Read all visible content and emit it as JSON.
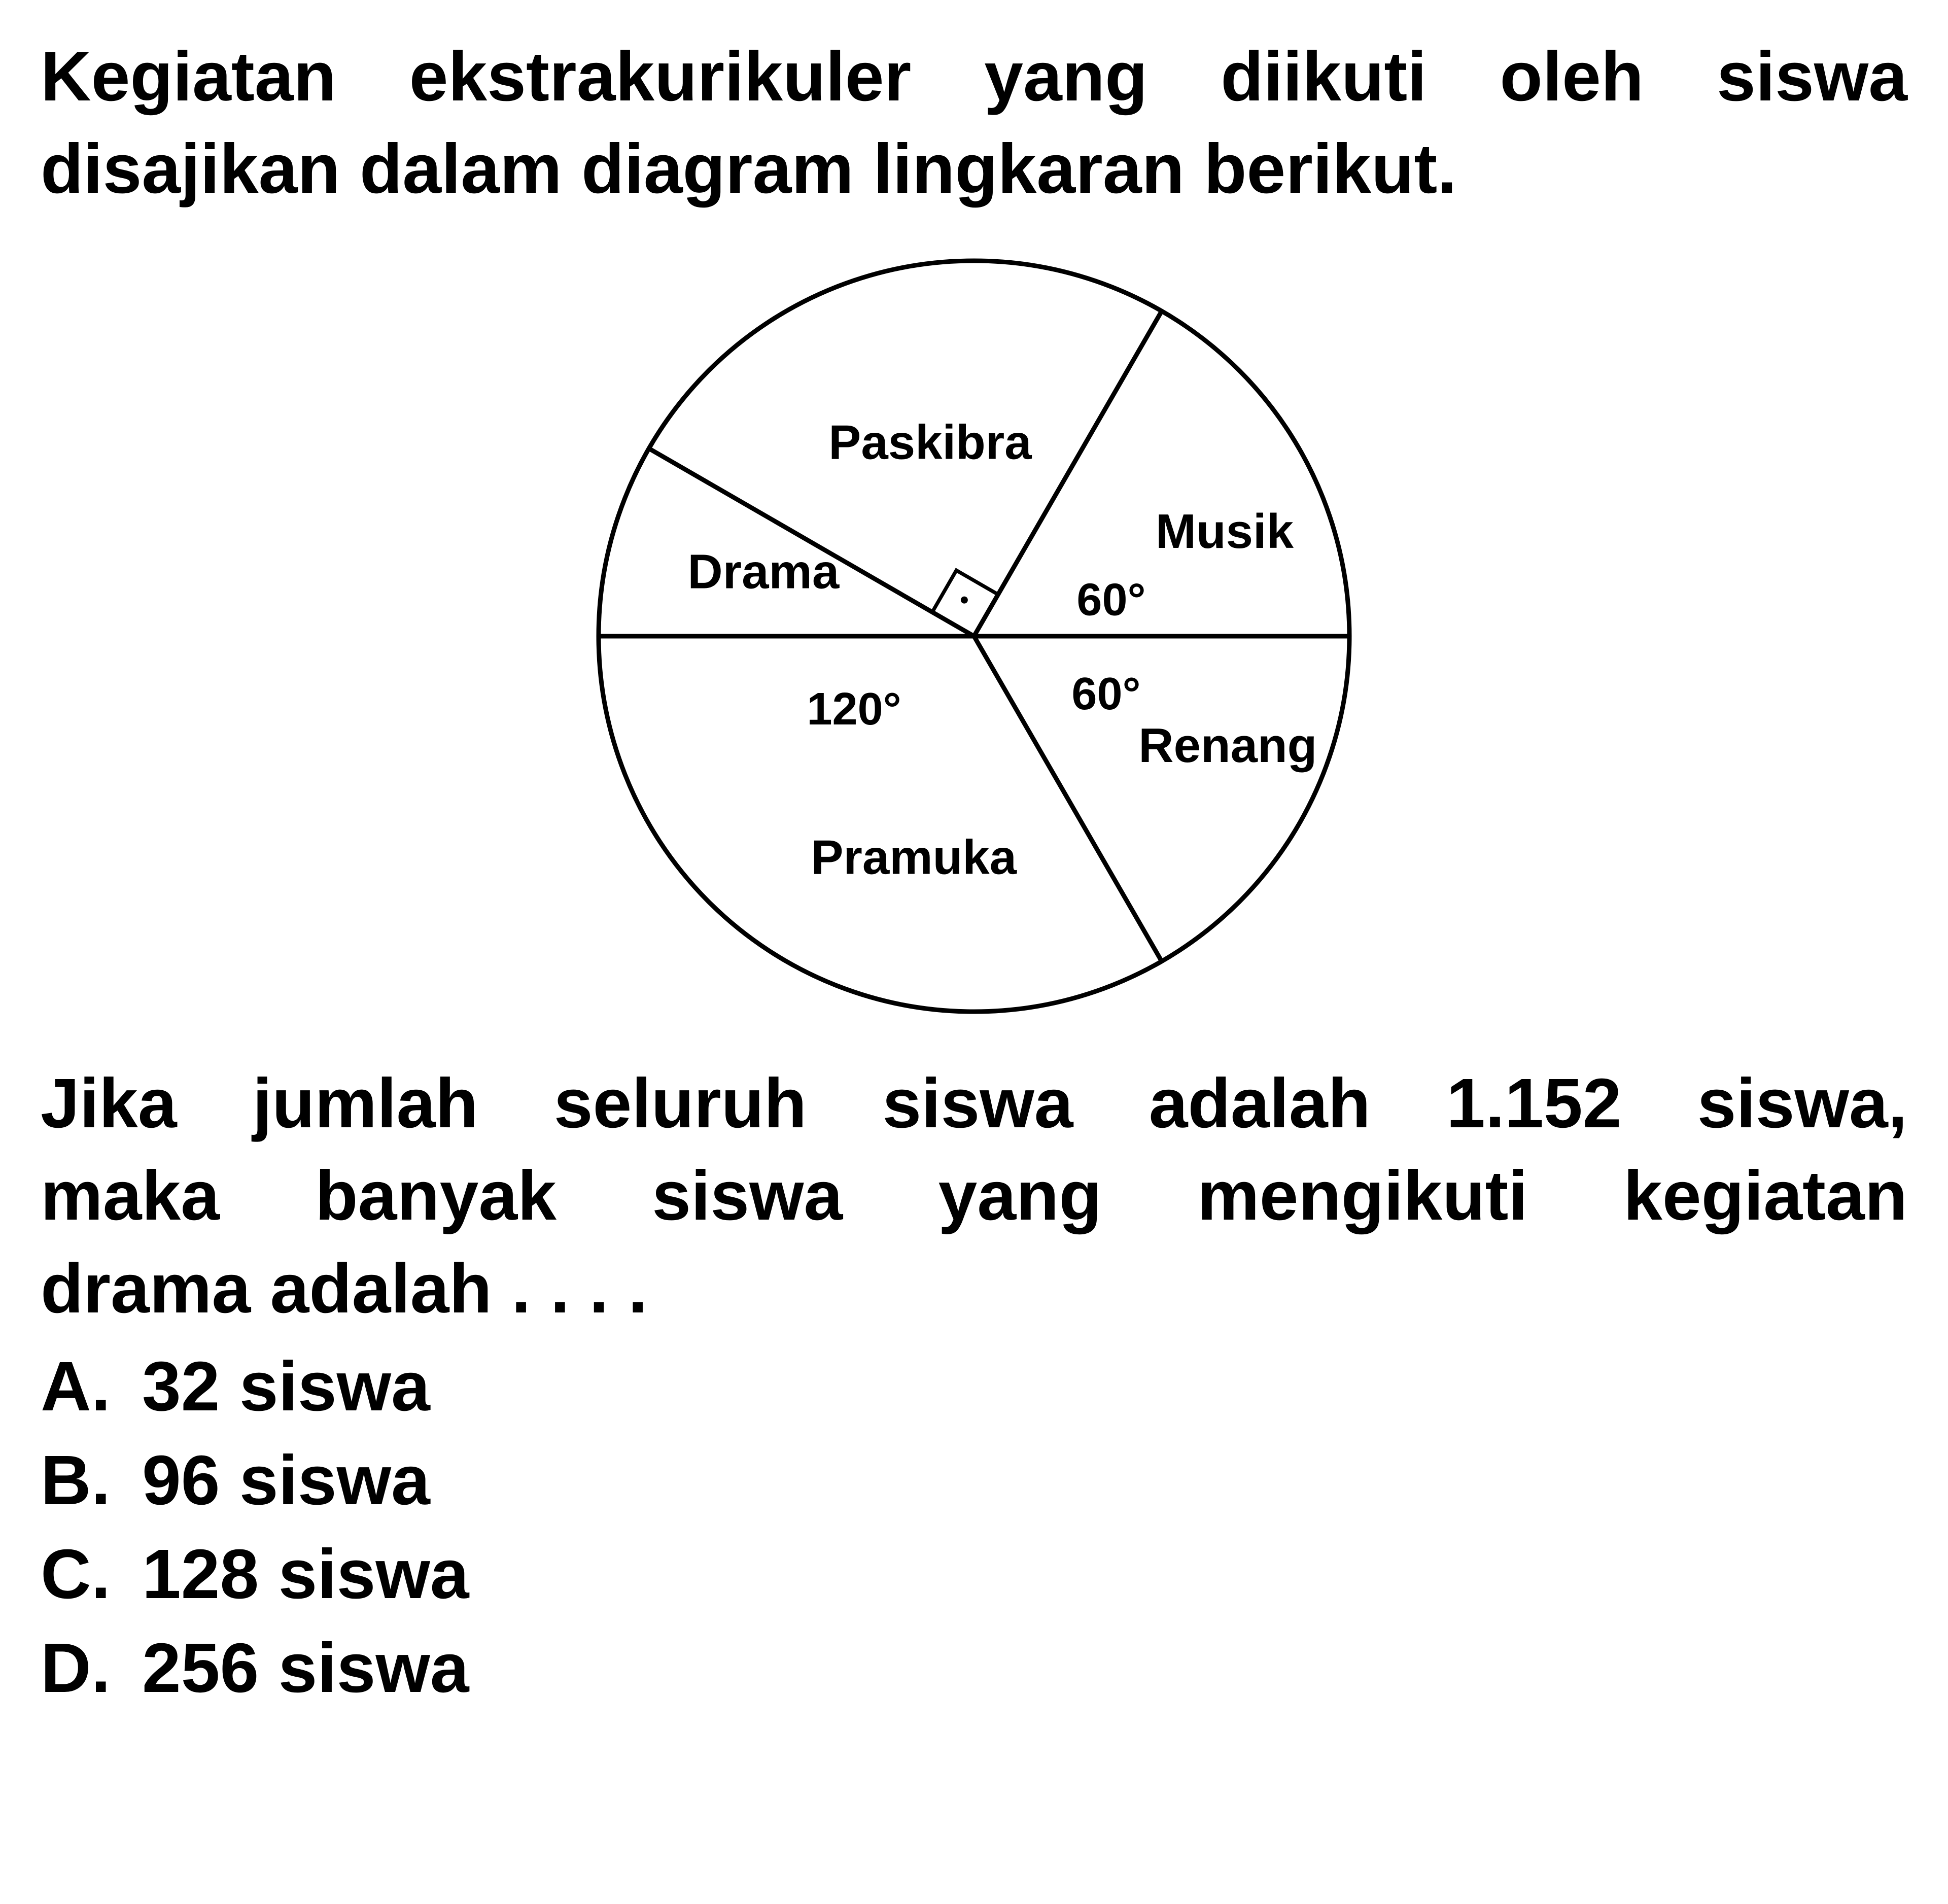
{
  "intro_line1": "Kegiatan ekstrakurikuler yang diikuti oleh siswa",
  "intro_line2": "disajikan dalam diagram lingkaran berikut.",
  "chart": {
    "type": "pie",
    "stroke_color": "#000000",
    "stroke_width": 9,
    "background_color": "#ffffff",
    "label_fontsize": 96,
    "angle_fontsize": 90,
    "slices": [
      {
        "label": "Paskibra",
        "angle_deg": 90
      },
      {
        "label": "Musik",
        "angle_deg": 60,
        "angle_text": "60°"
      },
      {
        "label": "Renang",
        "angle_deg": 60,
        "angle_text": "60°"
      },
      {
        "label": "Pramuka",
        "angle_deg": 120,
        "angle_text": "120°"
      },
      {
        "label": "Drama",
        "angle_deg": 30
      }
    ],
    "right_angle_marker": true
  },
  "followup_line1": "Jika jumlah seluruh siswa adalah 1.152 siswa,",
  "followup_line2": "maka banyak siswa yang mengikuti kegiatan",
  "followup_line3": "drama adalah . . . .",
  "options": [
    {
      "letter": "A.",
      "text": "32 siswa"
    },
    {
      "letter": "B.",
      "text": "96 siswa"
    },
    {
      "letter": "C.",
      "text": "128 siswa"
    },
    {
      "letter": "D.",
      "text": "256 siswa"
    }
  ]
}
